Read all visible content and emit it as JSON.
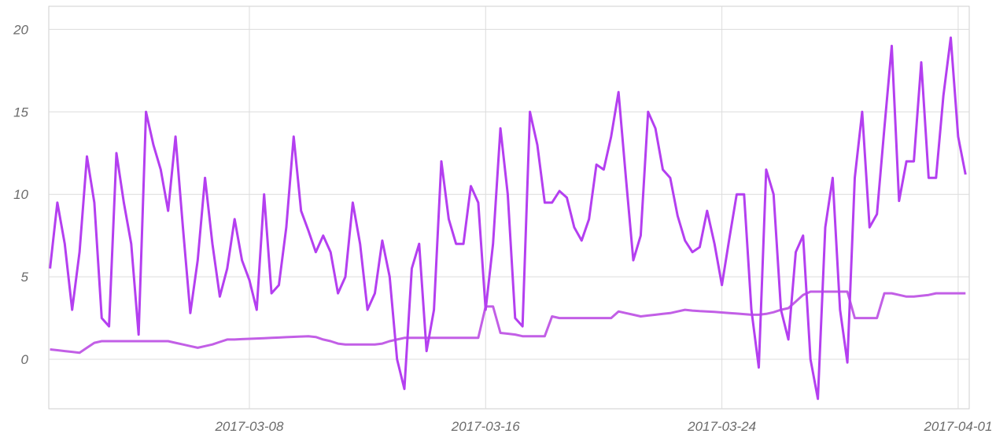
{
  "chart_data": {
    "type": "line",
    "x": [
      "2017-03-01T06:00",
      "2017-03-01T12:00",
      "2017-03-01T18:00",
      "2017-03-02T00:00",
      "2017-03-02T06:00",
      "2017-03-02T12:00",
      "2017-03-02T18:00",
      "2017-03-03T00:00",
      "2017-03-03T06:00",
      "2017-03-03T12:00",
      "2017-03-03T18:00",
      "2017-03-04T00:00",
      "2017-03-04T06:00",
      "2017-03-04T12:00",
      "2017-03-04T18:00",
      "2017-03-05T00:00",
      "2017-03-05T06:00",
      "2017-03-05T12:00",
      "2017-03-05T18:00",
      "2017-03-06T00:00",
      "2017-03-06T06:00",
      "2017-03-06T12:00",
      "2017-03-06T18:00",
      "2017-03-07T00:00",
      "2017-03-07T06:00",
      "2017-03-07T12:00",
      "2017-03-07T18:00",
      "2017-03-08T00:00",
      "2017-03-08T06:00",
      "2017-03-08T12:00",
      "2017-03-08T18:00",
      "2017-03-09T00:00",
      "2017-03-09T06:00",
      "2017-03-09T12:00",
      "2017-03-09T18:00",
      "2017-03-10T00:00",
      "2017-03-10T06:00",
      "2017-03-10T12:00",
      "2017-03-10T18:00",
      "2017-03-11T00:00",
      "2017-03-11T06:00",
      "2017-03-11T12:00",
      "2017-03-11T18:00",
      "2017-03-12T00:00",
      "2017-03-12T06:00",
      "2017-03-12T12:00",
      "2017-03-12T18:00",
      "2017-03-13T00:00",
      "2017-03-13T06:00",
      "2017-03-13T12:00",
      "2017-03-13T18:00",
      "2017-03-14T00:00",
      "2017-03-14T06:00",
      "2017-03-14T12:00",
      "2017-03-14T18:00",
      "2017-03-15T00:00",
      "2017-03-15T06:00",
      "2017-03-15T12:00",
      "2017-03-15T18:00",
      "2017-03-16T00:00",
      "2017-03-16T06:00",
      "2017-03-16T12:00",
      "2017-03-16T18:00",
      "2017-03-17T00:00",
      "2017-03-17T06:00",
      "2017-03-17T12:00",
      "2017-03-17T18:00",
      "2017-03-18T00:00",
      "2017-03-18T06:00",
      "2017-03-18T12:00",
      "2017-03-18T18:00",
      "2017-03-19T00:00",
      "2017-03-19T06:00",
      "2017-03-19T12:00",
      "2017-03-19T18:00",
      "2017-03-20T00:00",
      "2017-03-20T06:00",
      "2017-03-20T12:00",
      "2017-03-20T18:00",
      "2017-03-21T00:00",
      "2017-03-21T06:00",
      "2017-03-21T12:00",
      "2017-03-21T18:00",
      "2017-03-22T00:00",
      "2017-03-22T06:00",
      "2017-03-22T12:00",
      "2017-03-22T18:00",
      "2017-03-23T00:00",
      "2017-03-23T06:00",
      "2017-03-23T12:00",
      "2017-03-23T18:00",
      "2017-03-24T00:00",
      "2017-03-24T06:00",
      "2017-03-24T12:00",
      "2017-03-24T18:00",
      "2017-03-25T00:00",
      "2017-03-25T06:00",
      "2017-03-25T12:00",
      "2017-03-25T18:00",
      "2017-03-26T00:00",
      "2017-03-26T06:00",
      "2017-03-26T12:00",
      "2017-03-26T18:00",
      "2017-03-27T00:00",
      "2017-03-27T06:00",
      "2017-03-27T12:00",
      "2017-03-27T18:00",
      "2017-03-28T00:00",
      "2017-03-28T06:00",
      "2017-03-28T12:00",
      "2017-03-28T18:00",
      "2017-03-29T00:00",
      "2017-03-29T06:00",
      "2017-03-29T12:00",
      "2017-03-29T18:00",
      "2017-03-30T00:00",
      "2017-03-30T06:00",
      "2017-03-30T12:00",
      "2017-03-30T18:00",
      "2017-03-31T00:00",
      "2017-03-31T06:00",
      "2017-03-31T12:00",
      "2017-03-31T18:00",
      "2017-04-01T00:00",
      "2017-04-01T06:00"
    ],
    "series": [
      {
        "color": "#b43ff0",
        "values": [
          5.5,
          9.5,
          7,
          3,
          6.5,
          12.3,
          9.5,
          2.5,
          2,
          12.5,
          9.5,
          7,
          1.5,
          15,
          13,
          11.5,
          9,
          13.5,
          8,
          2.8,
          6,
          11,
          7,
          3.8,
          5.5,
          8.5,
          6,
          4.8,
          3,
          10,
          4,
          4.5,
          8,
          13.5,
          9,
          7.8,
          6.5,
          7.5,
          6.5,
          4,
          5,
          9.5,
          7,
          3,
          4,
          7.2,
          5,
          0,
          -1.8,
          5.5,
          7,
          0.5,
          3,
          12,
          8.5,
          7,
          7,
          10.5,
          9.5,
          3,
          7,
          14,
          10,
          2.5,
          2,
          15,
          13,
          9.5,
          9.5,
          10.2,
          9.8,
          8,
          7.2,
          8.5,
          11.8,
          11.5,
          13.5,
          16.2,
          11,
          6,
          7.5,
          15,
          14,
          11.5,
          11,
          8.7,
          7.2,
          6.5,
          6.8,
          9,
          7,
          4.5,
          7.3,
          10,
          10,
          3,
          -0.5,
          11.5,
          10,
          3,
          1.2,
          6.5,
          7.5,
          0,
          -2.4,
          8,
          11,
          3,
          -0.2,
          11,
          15,
          8,
          8.8,
          14,
          19,
          9.6,
          12,
          12,
          18,
          11,
          11,
          16,
          19.5,
          13.5,
          11.2
        ]
      },
      {
        "color": "#c25fe6",
        "values": [
          0.6,
          0.55,
          0.5,
          0.45,
          0.4,
          0.7,
          1.0,
          1.1,
          1.1,
          1.1,
          1.1,
          1.1,
          1.1,
          1.1,
          1.1,
          1.1,
          1.1,
          1.0,
          0.9,
          0.8,
          0.7,
          0.8,
          0.9,
          1.05,
          1.2,
          1.2,
          1.22,
          1.24,
          1.26,
          1.28,
          1.3,
          1.32,
          1.34,
          1.36,
          1.38,
          1.4,
          1.35,
          1.2,
          1.1,
          0.95,
          0.9,
          0.9,
          0.9,
          0.9,
          0.9,
          0.95,
          1.1,
          1.2,
          1.3,
          1.3,
          1.3,
          1.3,
          1.3,
          1.3,
          1.3,
          1.3,
          1.3,
          1.3,
          1.3,
          3.2,
          3.2,
          1.6,
          1.55,
          1.5,
          1.4,
          1.4,
          1.4,
          1.4,
          2.6,
          2.5,
          2.5,
          2.5,
          2.5,
          2.5,
          2.5,
          2.5,
          2.5,
          2.9,
          2.8,
          2.7,
          2.6,
          2.65,
          2.7,
          2.75,
          2.8,
          2.9,
          3.0,
          2.95,
          2.92,
          2.9,
          2.87,
          2.84,
          2.8,
          2.77,
          2.74,
          2.7,
          2.7,
          2.75,
          2.85,
          3.0,
          3.1,
          3.5,
          3.9,
          4.1,
          4.1,
          4.1,
          4.1,
          4.1,
          4.1,
          2.5,
          2.5,
          2.5,
          2.5,
          4.0,
          4.0,
          3.9,
          3.8,
          3.8,
          3.85,
          3.9,
          4.0,
          4.0,
          4.0,
          4.0,
          4.0
        ]
      }
    ],
    "xlim": [
      "2017-03-01T05:00",
      "2017-04-01T09:00"
    ],
    "xticks": [
      {
        "value": "2017-03-08T00:00",
        "label": "2017-03-08"
      },
      {
        "value": "2017-03-16T00:00",
        "label": "2017-03-16"
      },
      {
        "value": "2017-03-24T00:00",
        "label": "2017-03-24"
      },
      {
        "value": "2017-04-01T00:00",
        "label": "2017-04-01"
      }
    ],
    "ylim": [
      -3,
      21.4
    ],
    "yticks": [
      0,
      5,
      10,
      15,
      20
    ],
    "grid": true
  }
}
